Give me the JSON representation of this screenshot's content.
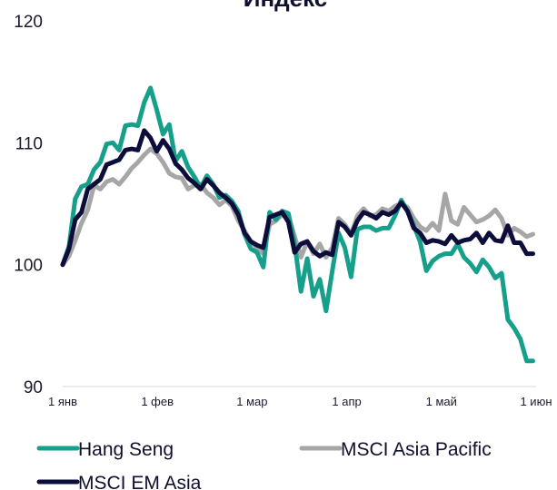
{
  "chart_data": {
    "type": "line",
    "title": "Индекс",
    "ylim": [
      90,
      120
    ],
    "yticks": [
      "90",
      "100",
      "110",
      "120"
    ],
    "xticks": [
      "1 янв",
      "1 фев",
      "1 мар",
      "1 апр",
      "1 май",
      "1 июн"
    ],
    "x_day_range": [
      0,
      151
    ],
    "legend_position": "bottom",
    "grid": false,
    "series": [
      {
        "name": "Hang Seng",
        "color": "#16a08c",
        "x": [
          0,
          2,
          4,
          6,
          8,
          10,
          12,
          14,
          16,
          18,
          20,
          22,
          24,
          26,
          28,
          30,
          32,
          34,
          36,
          38,
          40,
          42,
          44,
          46,
          48,
          50,
          52,
          54,
          56,
          58,
          60,
          62,
          64,
          66,
          68,
          70,
          72,
          74,
          76,
          78,
          80,
          82,
          84,
          86,
          88,
          90,
          92,
          94,
          96,
          98,
          100,
          102,
          104,
          106,
          108,
          110,
          112,
          114,
          116,
          118,
          120,
          122,
          124,
          126,
          128,
          130,
          132,
          134,
          136,
          138,
          140,
          142,
          144,
          146,
          148,
          150
        ],
        "values": [
          100.0,
          101.5,
          105.4,
          106.4,
          106.6,
          107.8,
          108.4,
          109.9,
          110.0,
          109.4,
          111.4,
          111.5,
          111.4,
          113.3,
          114.5,
          112.7,
          110.7,
          111.5,
          108.5,
          109.3,
          108.0,
          107.2,
          106.3,
          107.3,
          106.6,
          105.5,
          105.7,
          105.2,
          104.4,
          102.5,
          101.3,
          101.0,
          99.8,
          104.3,
          103.7,
          104.4,
          104.2,
          101.7,
          97.8,
          100.5,
          97.4,
          98.8,
          96.2,
          99.5,
          102.6,
          101.4,
          99.0,
          102.9,
          103.1,
          103.1,
          102.8,
          103.0,
          103.0,
          104.0,
          105.3,
          104.4,
          103.2,
          101.9,
          99.5,
          100.3,
          100.7,
          100.9,
          100.9,
          101.7,
          100.6,
          100.1,
          99.4,
          100.4,
          99.8,
          98.9,
          99.3,
          95.5,
          94.8,
          93.9,
          92.1,
          92.1
        ]
      },
      {
        "name": "MSCI Asia Pacific",
        "color": "#a6a6a6",
        "x": [
          0,
          2,
          4,
          6,
          8,
          10,
          12,
          14,
          16,
          18,
          20,
          22,
          24,
          26,
          28,
          30,
          32,
          34,
          36,
          38,
          40,
          42,
          44,
          46,
          48,
          50,
          52,
          54,
          56,
          58,
          60,
          62,
          64,
          66,
          68,
          70,
          72,
          74,
          76,
          78,
          80,
          82,
          84,
          86,
          88,
          90,
          92,
          94,
          96,
          98,
          100,
          102,
          104,
          106,
          108,
          110,
          112,
          114,
          116,
          118,
          120,
          122,
          124,
          126,
          128,
          130,
          132,
          134,
          136,
          138,
          140,
          142,
          144,
          146,
          148,
          150
        ],
        "values": [
          100.0,
          100.7,
          102.0,
          103.4,
          104.5,
          106.5,
          106.2,
          106.8,
          107.0,
          106.6,
          107.2,
          107.9,
          108.4,
          109.0,
          109.5,
          109.1,
          108.4,
          107.5,
          107.2,
          107.1,
          106.2,
          106.5,
          106.6,
          105.9,
          105.5,
          104.9,
          105.3,
          104.8,
          103.6,
          102.8,
          101.9,
          101.4,
          100.9,
          103.3,
          103.6,
          104.1,
          104.0,
          102.3,
          100.6,
          101.9,
          100.9,
          101.7,
          100.6,
          101.4,
          103.8,
          103.3,
          102.5,
          104.0,
          104.6,
          104.0,
          104.1,
          104.6,
          104.4,
          104.8,
          105.0,
          104.7,
          103.8,
          103.1,
          102.8,
          103.4,
          102.8,
          105.8,
          103.6,
          103.3,
          104.7,
          104.1,
          103.5,
          103.7,
          104.0,
          104.5,
          103.8,
          102.4,
          103.0,
          102.7,
          102.3,
          102.5
        ]
      },
      {
        "name": "MSCI EM Asia",
        "color": "#0d0d3b",
        "x": [
          0,
          2,
          4,
          6,
          8,
          10,
          12,
          14,
          16,
          18,
          20,
          22,
          24,
          26,
          28,
          30,
          32,
          34,
          36,
          38,
          40,
          42,
          44,
          46,
          48,
          50,
          52,
          54,
          56,
          58,
          60,
          62,
          64,
          66,
          68,
          70,
          72,
          74,
          76,
          78,
          80,
          82,
          84,
          86,
          88,
          90,
          92,
          94,
          96,
          98,
          100,
          102,
          104,
          106,
          108,
          110,
          112,
          114,
          116,
          118,
          120,
          122,
          124,
          126,
          128,
          130,
          132,
          134,
          136,
          138,
          140,
          142,
          144,
          146,
          148,
          150
        ],
        "values": [
          100.0,
          101.3,
          103.7,
          104.3,
          106.2,
          106.6,
          107.0,
          108.2,
          108.4,
          108.6,
          109.4,
          109.5,
          109.4,
          111.0,
          110.4,
          109.3,
          110.2,
          109.5,
          108.3,
          107.8,
          107.1,
          106.7,
          106.2,
          107.0,
          106.5,
          105.9,
          105.5,
          105.0,
          104.1,
          102.6,
          101.9,
          101.6,
          101.4,
          103.9,
          104.1,
          104.3,
          103.5,
          101.0,
          101.7,
          101.9,
          101.1,
          100.7,
          101.0,
          100.8,
          103.5,
          103.1,
          102.4,
          103.6,
          104.3,
          104.1,
          103.8,
          104.3,
          104.1,
          104.4,
          105.1,
          104.4,
          103.0,
          102.6,
          101.8,
          102.0,
          101.9,
          101.7,
          102.4,
          101.8,
          102.0,
          102.1,
          102.6,
          101.8,
          102.6,
          102.0,
          101.9,
          103.2,
          101.8,
          101.8,
          100.9,
          100.9
        ]
      }
    ]
  }
}
